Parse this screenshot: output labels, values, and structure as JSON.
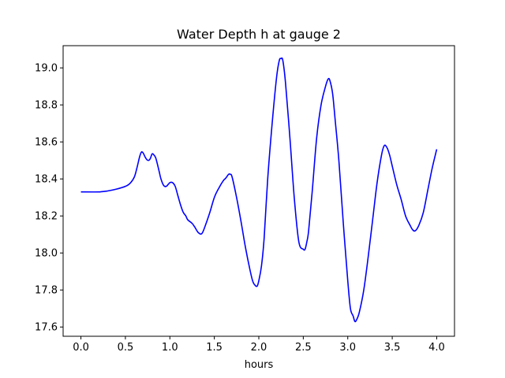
{
  "chart_data": {
    "type": "line",
    "title": "Water Depth h at gauge 2",
    "xlabel": "hours",
    "ylabel": "",
    "xlim": [
      -0.2,
      4.2
    ],
    "ylim": [
      17.55,
      19.12
    ],
    "xticks": [
      0.0,
      0.5,
      1.0,
      1.5,
      2.0,
      2.5,
      3.0,
      3.5,
      4.0
    ],
    "xtick_labels": [
      "0.0",
      "0.5",
      "1.0",
      "1.5",
      "2.0",
      "2.5",
      "3.0",
      "3.5",
      "4.0"
    ],
    "yticks": [
      17.6,
      17.8,
      18.0,
      18.2,
      18.4,
      18.6,
      18.8,
      19.0
    ],
    "ytick_labels": [
      "17.6",
      "17.8",
      "18.0",
      "18.2",
      "18.4",
      "18.6",
      "18.8",
      "19.0"
    ],
    "grid": false,
    "color": "#0000ff",
    "x": [
      0.0,
      0.2,
      0.3,
      0.4,
      0.5,
      0.55,
      0.6,
      0.63,
      0.66,
      0.68,
      0.7,
      0.72,
      0.74,
      0.76,
      0.78,
      0.8,
      0.82,
      0.84,
      0.86,
      0.88,
      0.9,
      0.93,
      0.96,
      1.0,
      1.03,
      1.06,
      1.09,
      1.12,
      1.15,
      1.18,
      1.2,
      1.25,
      1.28,
      1.32,
      1.36,
      1.4,
      1.45,
      1.5,
      1.55,
      1.6,
      1.63,
      1.66,
      1.68,
      1.7,
      1.75,
      1.8,
      1.85,
      1.9,
      1.93,
      1.95,
      1.98,
      2.0,
      2.03,
      2.06,
      2.1,
      2.15,
      2.2,
      2.23,
      2.25,
      2.27,
      2.3,
      2.35,
      2.4,
      2.45,
      2.5,
      2.52,
      2.54,
      2.56,
      2.6,
      2.65,
      2.7,
      2.75,
      2.78,
      2.8,
      2.83,
      2.86,
      2.9,
      2.95,
      3.0,
      3.03,
      3.06,
      3.08,
      3.1,
      3.13,
      3.18,
      3.23,
      3.28,
      3.33,
      3.38,
      3.41,
      3.44,
      3.47,
      3.5,
      3.55,
      3.6,
      3.65,
      3.7,
      3.73,
      3.76,
      3.8,
      3.85,
      3.9,
      3.95,
      4.0
    ],
    "y": [
      18.33,
      18.33,
      18.335,
      18.345,
      18.36,
      18.375,
      18.41,
      18.46,
      18.52,
      18.545,
      18.54,
      18.52,
      18.505,
      18.5,
      18.51,
      18.535,
      18.53,
      18.515,
      18.48,
      18.44,
      18.4,
      18.365,
      18.36,
      18.38,
      18.38,
      18.36,
      18.31,
      18.26,
      18.22,
      18.2,
      18.18,
      18.16,
      18.14,
      18.11,
      18.105,
      18.15,
      18.22,
      18.3,
      18.35,
      18.39,
      18.405,
      18.425,
      18.425,
      18.41,
      18.3,
      18.17,
      18.03,
      17.91,
      17.85,
      17.83,
      17.82,
      17.85,
      17.93,
      18.08,
      18.4,
      18.7,
      18.95,
      19.04,
      19.05,
      19.04,
      18.92,
      18.62,
      18.29,
      18.06,
      18.02,
      18.02,
      18.06,
      18.12,
      18.33,
      18.62,
      18.8,
      18.9,
      18.94,
      18.93,
      18.86,
      18.71,
      18.5,
      18.16,
      17.85,
      17.7,
      17.66,
      17.63,
      17.64,
      17.68,
      17.8,
      17.98,
      18.18,
      18.38,
      18.53,
      18.58,
      18.57,
      18.53,
      18.47,
      18.37,
      18.29,
      18.2,
      18.15,
      18.125,
      18.12,
      18.15,
      18.22,
      18.34,
      18.46,
      18.56
    ]
  }
}
